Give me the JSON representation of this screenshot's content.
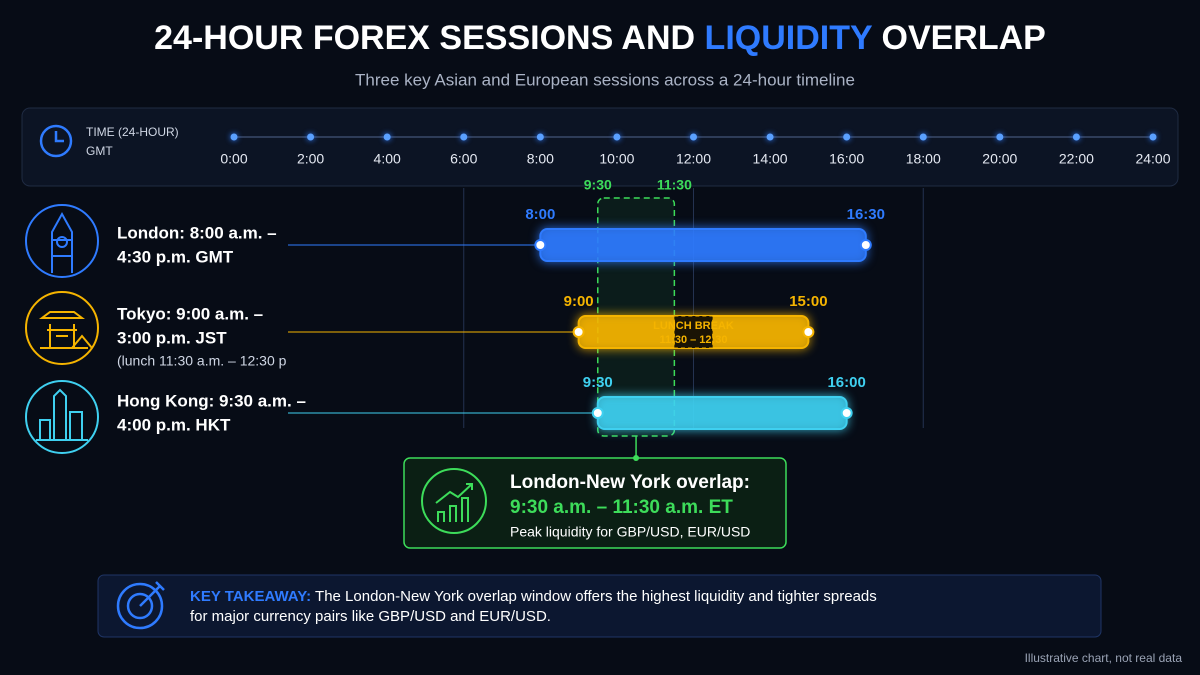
{
  "chart_data": {
    "type": "gantt",
    "title": {
      "before": "24-HOUR FOREX SESSIONS AND",
      "highlight": "LIQUIDITY",
      "after": "OVERLAP"
    },
    "subtitle": "Three key Asian and European sessions across a 24-hour timeline",
    "x_label": "TIME (24-HOUR)",
    "x_sublabel": "GMT",
    "xlim": [
      0,
      24
    ],
    "xticks": [
      {
        "value": 0,
        "label": "0:00"
      },
      {
        "value": 2,
        "label": "2:00"
      },
      {
        "value": 4,
        "label": "4:00"
      },
      {
        "value": 6,
        "label": "6:00"
      },
      {
        "value": 8,
        "label": "8:00"
      },
      {
        "value": 10,
        "label": "10:00"
      },
      {
        "value": 12,
        "label": "12:00"
      },
      {
        "value": 14,
        "label": "14:00"
      },
      {
        "value": 16,
        "label": "16:00"
      },
      {
        "value": 18,
        "label": "18:00"
      },
      {
        "value": 20,
        "label": "20:00"
      },
      {
        "value": 22,
        "label": "22:00"
      },
      {
        "value": 24,
        "label": "24:00"
      }
    ],
    "series": [
      {
        "name": "London",
        "label_lines": [
          "London: 8:00 a.m. –",
          "4:30 p.m. GMT"
        ],
        "color": "#2f7bff",
        "start": 8,
        "end": 16.5,
        "start_label": "8:00",
        "end_label": "16:30"
      },
      {
        "name": "Tokyo",
        "label_lines": [
          "Tokyo: 9:00 a.m. –",
          "3:00 p.m. JST"
        ],
        "note": "(lunch 11:30 a.m. – 12:30 p",
        "color": "#f5b400",
        "start": 9,
        "end": 15,
        "start_label": "9:00",
        "end_label": "15:00",
        "break": {
          "label": "LUNCH BREAK",
          "range_label": "11:30 – 12:30",
          "start": 11.5,
          "end": 12.5
        }
      },
      {
        "name": "Hong Kong",
        "label_lines": [
          "Hong Kong: 9:30 a.m. –",
          "4:00 p.m. HKT"
        ],
        "color": "#3fd0f0",
        "start": 9.5,
        "end": 16,
        "start_label": "9:30",
        "end_label": "16:00"
      }
    ],
    "overlap": {
      "color": "#3ddc5a",
      "start": 9.5,
      "end": 11.5,
      "start_label": "9:30",
      "end_label": "11:30",
      "title": "London-New York overlap:",
      "time": "9:30 a.m. – 11:30 a.m. ET",
      "description": "Peak liquidity for GBP/USD, EUR/USD"
    },
    "takeaway": {
      "label": "KEY TAKEAWAY:",
      "lines": [
        "The London-New York overlap window offers the highest liquidity and tighter spreads",
        "for major currency pairs like GBP/USD and EUR/USD."
      ]
    },
    "footnote": "Illustrative chart, not real data"
  }
}
